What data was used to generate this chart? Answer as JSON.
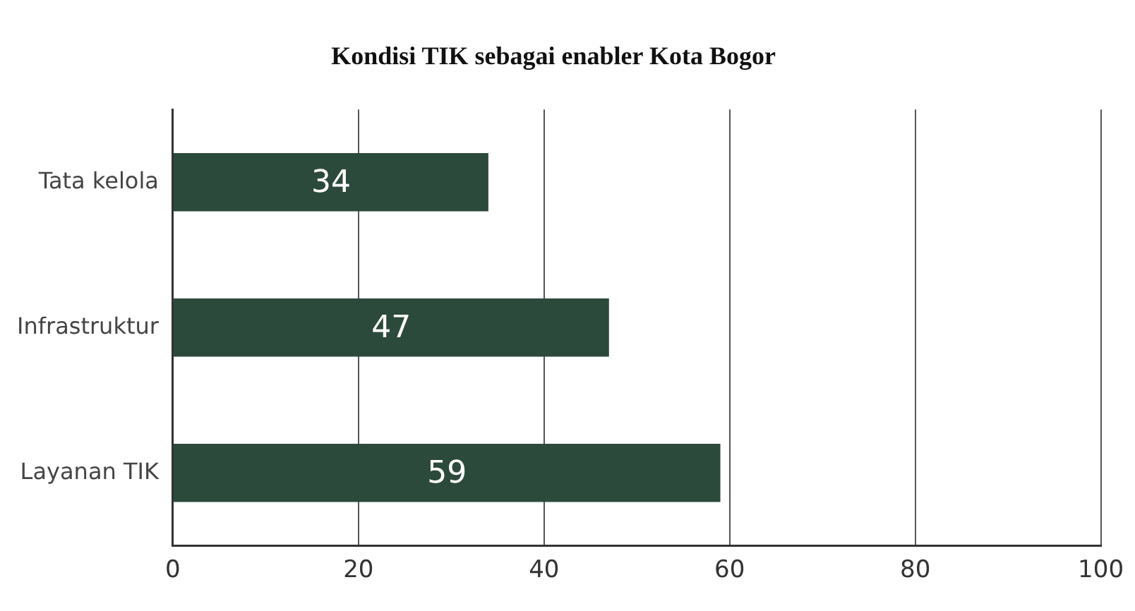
{
  "chart_data": {
    "type": "bar",
    "orientation": "horizontal",
    "title": "Kondisi TIK sebagai enabler Kota Bogor",
    "categories": [
      "Tata kelola",
      "Infrastruktur",
      "Layanan TIK"
    ],
    "values": [
      34,
      47,
      59
    ],
    "color": "#2c4a3b",
    "xlim": [
      0,
      100
    ],
    "xticks": [
      0,
      20,
      40,
      60,
      80,
      100
    ],
    "grid": "x",
    "data_labels": true,
    "legend": false
  }
}
